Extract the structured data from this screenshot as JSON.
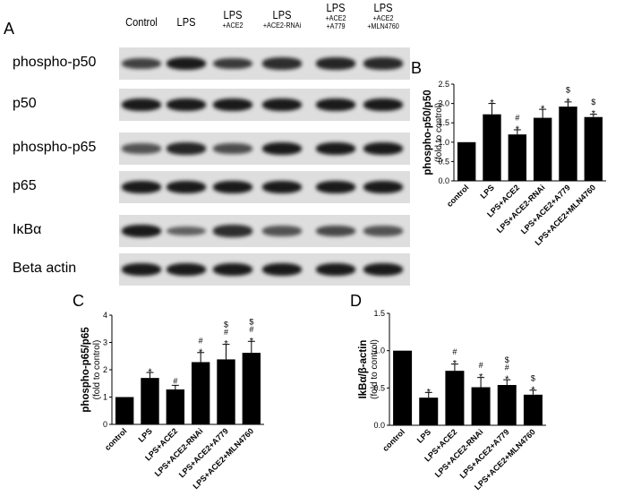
{
  "panel_a": {
    "letter": "A",
    "lanes": [
      {
        "main": "Control",
        "sub": ""
      },
      {
        "main": "LPS",
        "sub": ""
      },
      {
        "main": "LPS",
        "sub": "+ACE2"
      },
      {
        "main": "LPS",
        "sub": "+ACE2-RNAi"
      },
      {
        "main": "LPS",
        "sub": "+ACE2\n+A779"
      },
      {
        "main": "LPS",
        "sub": "+ACE2\n+MLN4760"
      }
    ],
    "rows": [
      {
        "label": "phospho-p50",
        "intensity": [
          0.7,
          1.0,
          0.75,
          0.85,
          0.9,
          0.88
        ]
      },
      {
        "label": "p50",
        "intensity": [
          1.0,
          1.0,
          1.0,
          1.0,
          1.0,
          1.0
        ]
      },
      {
        "label": "phospho-p65",
        "intensity": [
          0.55,
          0.9,
          0.6,
          1.0,
          1.0,
          1.0
        ]
      },
      {
        "label": "p65",
        "intensity": [
          1.0,
          1.0,
          1.0,
          1.0,
          1.0,
          1.0
        ]
      },
      {
        "label": "IκBα",
        "intensity": [
          1.0,
          0.45,
          0.85,
          0.55,
          0.65,
          0.55
        ]
      },
      {
        "label": "Beta actin",
        "intensity": [
          1.0,
          1.0,
          1.0,
          1.0,
          1.0,
          1.0
        ]
      }
    ],
    "band_color": "#1a1a1a",
    "strip_color": "#dedede"
  },
  "chart_data": [
    {
      "panel": "B",
      "type": "bar",
      "categories": [
        "control",
        "LPS",
        "LPS+ACE2",
        "LPS+ACE2-RNAi",
        "LPS+ACE2+A779",
        "LPS+ACE2+MLN4760"
      ],
      "values": [
        1.0,
        1.72,
        1.2,
        1.63,
        1.92,
        1.65
      ],
      "errors": [
        0,
        0.28,
        0.12,
        0.22,
        0.12,
        0.07
      ],
      "annotations": [
        "",
        "*",
        "#\n*",
        "*",
        "$\n*",
        "$\n*"
      ],
      "ylabel": "phospho-p50/p50",
      "ylabel_sub": "(fold to control)",
      "ylim": [
        0,
        2.5
      ],
      "yticks": [
        "0.0",
        "0.5",
        "1.0",
        "1.5",
        "2.0",
        "2.5"
      ],
      "bar_color": "#000000",
      "grid": false
    },
    {
      "panel": "C",
      "type": "bar",
      "categories": [
        "control",
        "LPS",
        "LPS+ACE2",
        "LPS+ACE2-RNAi",
        "LPS+ACE2+A779",
        "LPS+ACE2+MLN4760"
      ],
      "values": [
        1.0,
        1.7,
        1.28,
        2.28,
        2.38,
        2.62
      ],
      "errors": [
        0,
        0.2,
        0.15,
        0.35,
        0.55,
        0.42
      ],
      "annotations": [
        "",
        "*",
        "#",
        "#\n*",
        "$\n#\n*",
        "$\n#\n*"
      ],
      "ylabel": "phospho-p65/p65",
      "ylabel_sub": "(fold to control)",
      "ylim": [
        0,
        4
      ],
      "yticks": [
        "0",
        "1",
        "2",
        "3",
        "4"
      ],
      "bar_color": "#000000",
      "grid": false
    },
    {
      "panel": "D",
      "type": "bar",
      "categories": [
        "control",
        "LPS",
        "LPS+ACE2",
        "LPS+ACE2-RNAi",
        "LPS+ACE2+A779",
        "LPS+ACE2+MLN4760"
      ],
      "values": [
        1.0,
        0.37,
        0.73,
        0.51,
        0.54,
        0.41
      ],
      "errors": [
        0,
        0.07,
        0.09,
        0.13,
        0.07,
        0.06
      ],
      "annotations": [
        "",
        "*",
        "#\n*",
        "#\n*",
        "$\n#\n*",
        "$\n*"
      ],
      "ylabel": "IkBα/β-actin",
      "ylabel_sub": "(fold to control)",
      "ylim": [
        0,
        1.5
      ],
      "yticks": [
        "0.0",
        "0.5",
        "1.0",
        "1.5"
      ],
      "bar_color": "#000000",
      "grid": false
    }
  ]
}
